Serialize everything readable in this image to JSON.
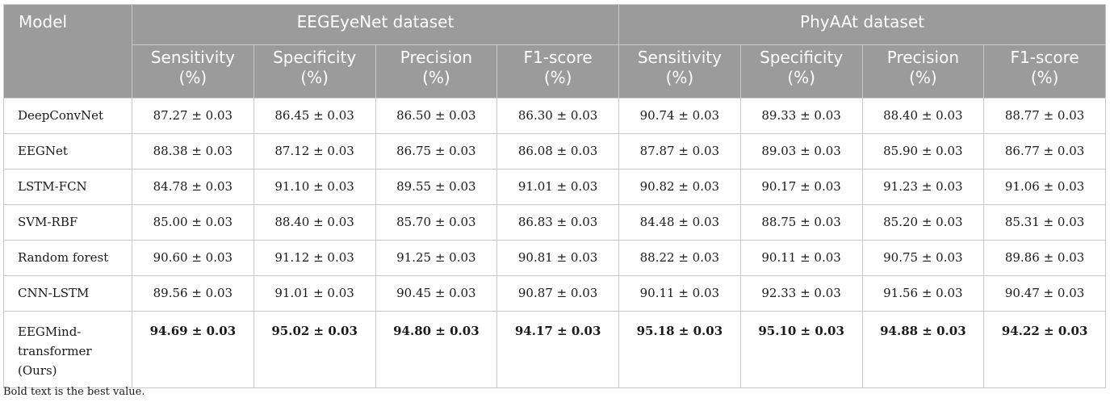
{
  "table": {
    "model_header": "Model",
    "dataset_headers": [
      "EEGEyeNet dataset",
      "PhyAAt dataset"
    ],
    "metrics": [
      [
        "Sensitivity",
        "(%)"
      ],
      [
        "Specificity",
        "(%)"
      ],
      [
        "Precision",
        "(%)"
      ],
      [
        "F1-score",
        "(%)"
      ],
      [
        "Sensitivity",
        "(%)"
      ],
      [
        "Specificity",
        "(%)"
      ],
      [
        "Precision",
        "(%)"
      ],
      [
        "F1-score",
        "(%)"
      ]
    ],
    "rows": [
      {
        "model": [
          "DeepConvNet"
        ],
        "best": false,
        "values": [
          "87.27 ± 0.03",
          "86.45 ± 0.03",
          "86.50 ± 0.03",
          "86.30 ± 0.03",
          "90.74 ± 0.03",
          "89.33 ± 0.03",
          "88.40 ± 0.03",
          "88.77 ± 0.03"
        ]
      },
      {
        "model": [
          "EEGNet"
        ],
        "best": false,
        "values": [
          "88.38 ± 0.03",
          "87.12 ± 0.03",
          "86.75 ± 0.03",
          "86.08 ± 0.03",
          "87.87 ± 0.03",
          "89.03 ± 0.03",
          "85.90 ± 0.03",
          "86.77 ± 0.03"
        ]
      },
      {
        "model": [
          "LSTM-FCN"
        ],
        "best": false,
        "values": [
          "84.78 ± 0.03",
          "91.10 ± 0.03",
          "89.55 ± 0.03",
          "91.01 ± 0.03",
          "90.82 ± 0.03",
          "90.17 ± 0.03",
          "91.23 ± 0.03",
          "91.06 ± 0.03"
        ]
      },
      {
        "model": [
          "SVM-RBF"
        ],
        "best": false,
        "values": [
          "85.00 ± 0.03",
          "88.40 ± 0.03",
          "85.70 ± 0.03",
          "86.83 ± 0.03",
          "84.48 ± 0.03",
          "88.75 ± 0.03",
          "85.20 ± 0.03",
          "85.31 ± 0.03"
        ]
      },
      {
        "model": [
          "Random forest"
        ],
        "best": false,
        "values": [
          "90.60 ± 0.03",
          "91.12 ± 0.03",
          "91.25 ± 0.03",
          "90.81 ± 0.03",
          "88.22 ± 0.03",
          "90.11 ± 0.03",
          "90.75 ± 0.03",
          "89.86 ± 0.03"
        ]
      },
      {
        "model": [
          "CNN-LSTM"
        ],
        "best": false,
        "values": [
          "89.56 ± 0.03",
          "91.01 ± 0.03",
          "90.45 ± 0.03",
          "90.87 ± 0.03",
          "90.11 ± 0.03",
          "92.33 ± 0.03",
          "91.56 ± 0.03",
          "90.47 ± 0.03"
        ]
      },
      {
        "model": [
          "EEGMind-",
          "transformer",
          "(Ours)"
        ],
        "best": true,
        "values": [
          "94.69 ± 0.03",
          "95.02 ± 0.03",
          "94.80 ± 0.03",
          "94.17 ± 0.03",
          "95.18 ± 0.03",
          "95.10 ± 0.03",
          "94.88 ± 0.03",
          "94.22 ± 0.03"
        ]
      }
    ]
  },
  "footnote": "Bold text is the best value.",
  "colors": {
    "header_bg": "#9b9b9b",
    "header_text": "#ffffff",
    "grid": "#c9c9c9",
    "body_text": "#1a1a1a"
  }
}
